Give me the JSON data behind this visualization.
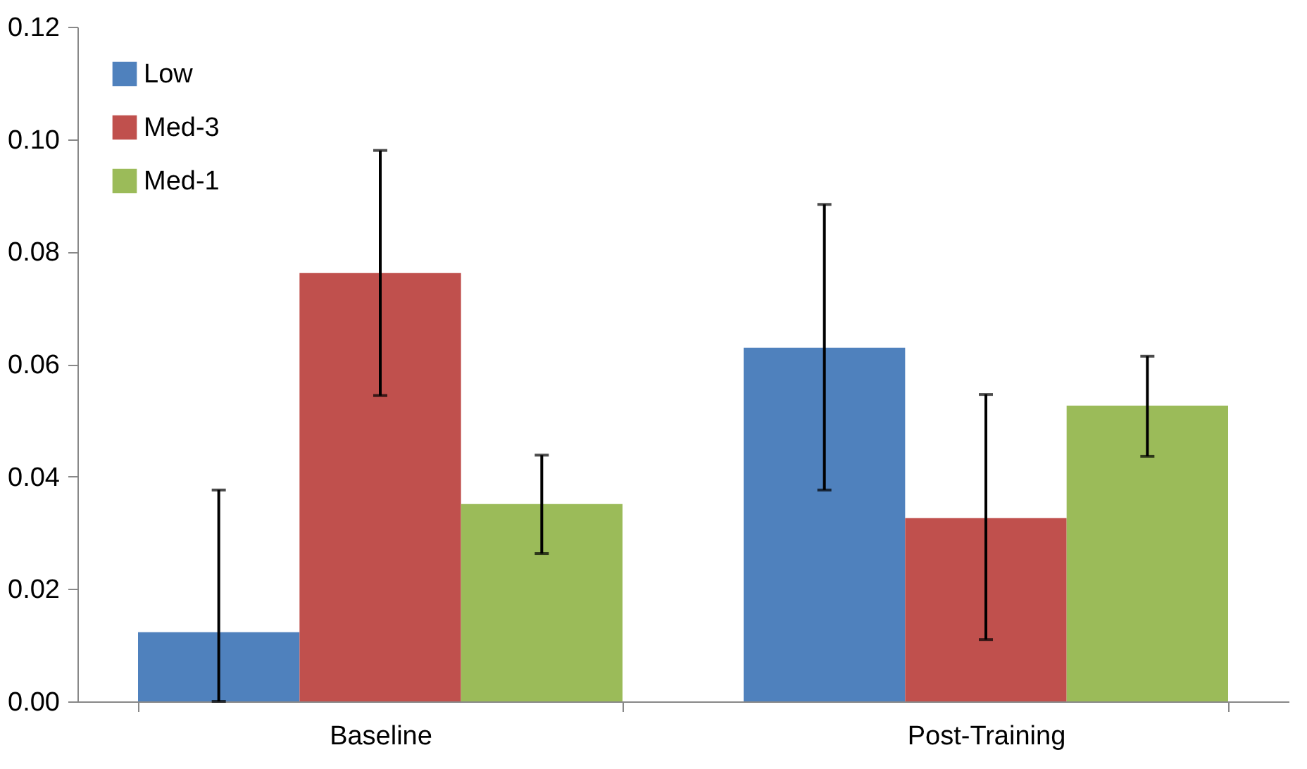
{
  "chart_data": {
    "type": "bar",
    "categories": [
      "Baseline",
      "Post-Training"
    ],
    "series": [
      {
        "name": "Low",
        "color": "#4f81bd",
        "values": [
          0.0123,
          0.0629
        ],
        "errors": [
          [
            0,
            0.0376
          ],
          [
            0.0376,
            0.0884
          ]
        ]
      },
      {
        "name": "Med-3",
        "color": "#c0504d",
        "values": [
          0.0762,
          0.0326
        ],
        "errors": [
          [
            0.0544,
            0.098
          ],
          [
            0.011,
            0.0546
          ]
        ]
      },
      {
        "name": "Med-1",
        "color": "#9bbb59",
        "values": [
          0.0351,
          0.0526
        ],
        "errors": [
          [
            0.0263,
            0.0438
          ],
          [
            0.0436,
            0.0614
          ]
        ]
      }
    ],
    "ylim": [
      0,
      0.12
    ],
    "yticks": [
      {
        "value": 0,
        "label": "0.00"
      },
      {
        "value": 0.02,
        "label": "0.02"
      },
      {
        "value": 0.04,
        "label": "0.04"
      },
      {
        "value": 0.06,
        "label": "0.06"
      },
      {
        "value": 0.08,
        "label": "0.08"
      },
      {
        "value": 0.1,
        "label": "0.10"
      },
      {
        "value": 0.12,
        "label": "0.12"
      }
    ],
    "grid": false,
    "legend": "top left"
  }
}
